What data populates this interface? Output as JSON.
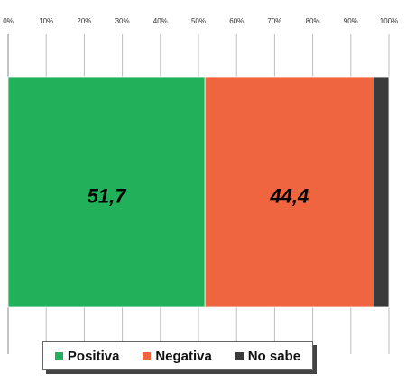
{
  "chart_data": {
    "type": "bar",
    "orientation": "horizontal",
    "stacked": true,
    "xlim": [
      0,
      100
    ],
    "x_ticks": [
      "0%",
      "10%",
      "20%",
      "30%",
      "40%",
      "50%",
      "60%",
      "70%",
      "80%",
      "90%",
      "100%"
    ],
    "series": [
      {
        "name": "Positiva",
        "value": 51.7,
        "label": "51,7",
        "color": "#22b15a"
      },
      {
        "name": "Negativa",
        "value": 44.4,
        "label": "44,4",
        "color": "#ef653f"
      },
      {
        "name": "No sabe",
        "value": 3.9,
        "label": "",
        "color": "#3b3b3b"
      }
    ],
    "grid": true,
    "legend_position": "bottom"
  }
}
